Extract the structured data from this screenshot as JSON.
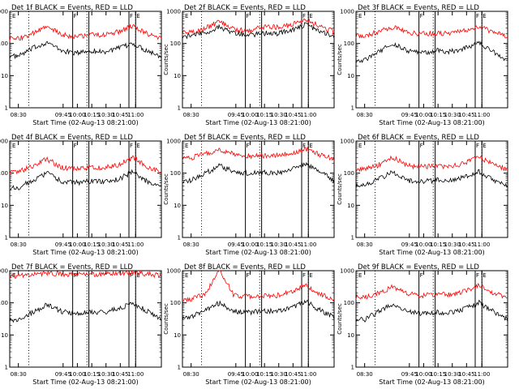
{
  "colors": {
    "events": "#000000",
    "lld": "#ff0000",
    "axes": "#000000",
    "background": "#ffffff"
  },
  "panels": [
    {
      "title": "Det 1f BLACK = Events, RED = LLD",
      "xlabel": "Start Time (02-Aug-13 08:21:00)",
      "ylabel": "Counts/sec",
      "xticks": [
        "08:30",
        "09:45",
        "10:00",
        "10:15",
        "10:30",
        "10:45",
        "11:00"
      ],
      "yticks": [
        "1",
        "10",
        "100",
        "1000"
      ]
    },
    {
      "title": "Det 2f BLACK = Events, RED = LLD",
      "xlabel": "Start Time (02-Aug-13 08:21:00)",
      "ylabel": "Counts/sec",
      "xticks": [
        "08:30",
        "09:45",
        "10:00",
        "10:15",
        "10:30",
        "10:45",
        "11:00"
      ],
      "yticks": [
        "1",
        "10",
        "100",
        "1000"
      ]
    },
    {
      "title": "Det 3f BLACK = Events, RED = LLD",
      "xlabel": "Start Time (02-Aug-13 08:21:00)",
      "ylabel": "Counts/sec",
      "xticks": [
        "08:30",
        "09:45",
        "10:00",
        "10:15",
        "10:30",
        "10:45",
        "11:00"
      ],
      "yticks": [
        "1",
        "10",
        "100",
        "1000"
      ]
    },
    {
      "title": "Det 4f BLACK = Events, RED = LLD",
      "xlabel": "Start Time (02-Aug-13 08:21:00)",
      "ylabel": "Counts/sec",
      "xticks": [
        "08:30",
        "09:45",
        "10:00",
        "10:15",
        "10:30",
        "10:45",
        "11:00"
      ],
      "yticks": [
        "1",
        "10",
        "100",
        "1000"
      ]
    },
    {
      "title": "Det 5f BLACK = Events, RED = LLD",
      "xlabel": "Start Time (02-Aug-13 08:21:00)",
      "ylabel": "Counts/sec",
      "xticks": [
        "08:30",
        "09:45",
        "10:00",
        "10:15",
        "10:30",
        "10:45",
        "11:00"
      ],
      "yticks": [
        "1",
        "10",
        "100",
        "1000"
      ]
    },
    {
      "title": "Det 6f BLACK = Events, RED = LLD",
      "xlabel": "Start Time (02-Aug-13 08:21:00)",
      "ylabel": "Counts/sec",
      "xticks": [
        "08:30",
        "09:45",
        "10:00",
        "10:15",
        "10:30",
        "10:45",
        "11:00"
      ],
      "yticks": [
        "1",
        "10",
        "100",
        "1000"
      ]
    },
    {
      "title": "Det 7f BLACK = Events, RED = LLD",
      "xlabel": "Start Time (02-Aug-13 08:21:00)",
      "ylabel": "Counts/sec",
      "xticks": [
        "08:30",
        "09:45",
        "10:00",
        "10:15",
        "10:30",
        "10:45",
        "11:00"
      ],
      "yticks": [
        "1",
        "10",
        "100",
        "1000"
      ]
    },
    {
      "title": "Det 8f BLACK = Events, RED = LLD",
      "xlabel": "Start Time (02-Aug-13 08:21:00)",
      "ylabel": "Counts/sec",
      "xticks": [
        "08:30",
        "09:45",
        "10:00",
        "10:15",
        "10:30",
        "10:45",
        "11:00"
      ],
      "yticks": [
        "1",
        "10",
        "100",
        "1000"
      ]
    },
    {
      "title": "Det 9f BLACK = Events, RED = LLD",
      "xlabel": "Start Time (02-Aug-13 08:21:00)",
      "ylabel": "Counts/sec",
      "xticks": [
        "08:30",
        "09:45",
        "10:00",
        "10:15",
        "10:30",
        "10:45",
        "11:00"
      ],
      "yticks": [
        "1",
        "10",
        "100",
        "1000"
      ]
    }
  ],
  "chart_data": [
    {
      "type": "line",
      "title": "Det 1f BLACK = Events, RED = LLD",
      "xlabel": "Start Time (02-Aug-13 08:21:00)",
      "ylabel": "Counts/sec",
      "log_y": true,
      "ylim": [
        1,
        1000
      ],
      "xlim": [
        "08:21",
        "11:00"
      ],
      "x": [
        "08:30",
        "08:45",
        "09:00",
        "09:15",
        "09:30",
        "09:45",
        "10:00",
        "10:15",
        "10:30",
        "10:45",
        "11:00"
      ],
      "series": [
        {
          "name": "Events",
          "color": "#000000",
          "values": [
            40,
            70,
            110,
            60,
            50,
            60,
            55,
            70,
            100,
            60,
            40
          ]
        },
        {
          "name": "LLD",
          "color": "#ff0000",
          "values": [
            140,
            200,
            330,
            190,
            160,
            190,
            180,
            230,
            350,
            200,
            140
          ]
        }
      ],
      "markers": {
        "dotted": [
          "08:41",
          "09:42",
          "10:33",
          "11:00"
        ],
        "solid": [
          "09:27",
          "09:44",
          "10:26",
          "10:33"
        ]
      },
      "annotations": [
        "E",
        "F",
        "F",
        "E"
      ]
    },
    {
      "type": "line",
      "title": "Det 2f BLACK = Events, RED = LLD",
      "xlabel": "Start Time (02-Aug-13 08:21:00)",
      "ylabel": "Counts/sec",
      "log_y": true,
      "ylim": [
        1,
        1000
      ],
      "xlim": [
        "08:21",
        "11:00"
      ],
      "x": [
        "08:30",
        "08:45",
        "09:00",
        "09:15",
        "09:30",
        "09:45",
        "10:00",
        "10:15",
        "10:30",
        "10:45",
        "11:00"
      ],
      "series": [
        {
          "name": "Events",
          "color": "#000000",
          "values": [
            170,
            220,
            330,
            210,
            180,
            210,
            200,
            260,
            380,
            250,
            170
          ]
        },
        {
          "name": "LLD",
          "color": "#ff0000",
          "values": [
            220,
            300,
            480,
            280,
            250,
            330,
            320,
            380,
            560,
            350,
            230
          ]
        }
      ],
      "markers": {
        "dotted": [
          "08:41",
          "09:42",
          "10:33",
          "11:00"
        ],
        "solid": [
          "09:27",
          "09:44",
          "10:26",
          "10:33"
        ]
      },
      "annotations": [
        "E",
        "F",
        "F",
        "E"
      ]
    },
    {
      "type": "line",
      "title": "Det 3f BLACK = Events, RED = LLD",
      "xlabel": "Start Time (02-Aug-13 08:21:00)",
      "ylabel": "Counts/sec",
      "log_y": true,
      "ylim": [
        1,
        1000
      ],
      "xlim": [
        "08:21",
        "11:00"
      ],
      "x": [
        "08:30",
        "08:45",
        "09:00",
        "09:15",
        "09:30",
        "09:45",
        "10:00",
        "10:15",
        "10:30",
        "10:45",
        "11:00"
      ],
      "series": [
        {
          "name": "Events",
          "color": "#000000",
          "values": [
            30,
            55,
            100,
            60,
            50,
            60,
            55,
            70,
            110,
            55,
            30
          ]
        },
        {
          "name": "LLD",
          "color": "#ff0000",
          "values": [
            180,
            230,
            330,
            210,
            200,
            210,
            200,
            250,
            350,
            220,
            170
          ]
        }
      ],
      "markers": {
        "dotted": [
          "08:41",
          "09:42",
          "10:33",
          "11:00"
        ],
        "solid": [
          "09:27",
          "09:44",
          "10:26",
          "10:33"
        ]
      },
      "annotations": [
        "E",
        "F",
        "F",
        "E"
      ]
    },
    {
      "type": "line",
      "title": "Det 4f BLACK = Events, RED = LLD",
      "xlabel": "Start Time (02-Aug-13 08:21:00)",
      "ylabel": "Counts/sec",
      "log_y": true,
      "ylim": [
        1,
        1000
      ],
      "xlim": [
        "08:21",
        "11:00"
      ],
      "x": [
        "08:30",
        "08:45",
        "09:00",
        "09:15",
        "09:30",
        "09:45",
        "10:00",
        "10:15",
        "10:30",
        "10:45",
        "11:00"
      ],
      "series": [
        {
          "name": "Events",
          "color": "#000000",
          "values": [
            35,
            60,
            100,
            55,
            50,
            55,
            55,
            65,
            110,
            55,
            35
          ]
        },
        {
          "name": "LLD",
          "color": "#ff0000",
          "values": [
            110,
            160,
            280,
            150,
            140,
            150,
            150,
            180,
            310,
            160,
            110
          ]
        }
      ],
      "markers": {
        "dotted": [
          "08:41",
          "09:42",
          "10:33",
          "11:00"
        ],
        "solid": [
          "09:27",
          "09:44",
          "10:26",
          "10:33"
        ]
      },
      "annotations": [
        "E",
        "F",
        "F",
        "E"
      ]
    },
    {
      "type": "line",
      "title": "Det 5f BLACK = Events, RED = LLD",
      "xlabel": "Start Time (02-Aug-13 08:21:00)",
      "ylabel": "Counts/sec",
      "log_y": true,
      "ylim": [
        1,
        1000
      ],
      "xlim": [
        "08:21",
        "11:00"
      ],
      "x": [
        "08:30",
        "08:45",
        "09:00",
        "09:15",
        "09:30",
        "09:45",
        "10:00",
        "10:15",
        "10:30",
        "10:45",
        "11:00"
      ],
      "series": [
        {
          "name": "Events",
          "color": "#000000",
          "values": [
            60,
            100,
            170,
            110,
            100,
            105,
            100,
            130,
            200,
            110,
            60
          ]
        },
        {
          "name": "LLD",
          "color": "#ff0000",
          "values": [
            300,
            400,
            550,
            380,
            340,
            350,
            350,
            420,
            580,
            380,
            280
          ]
        }
      ],
      "markers": {
        "dotted": [
          "08:41",
          "09:42",
          "10:33",
          "11:00"
        ],
        "solid": [
          "09:27",
          "09:44",
          "10:26",
          "10:33"
        ]
      },
      "annotations": [
        "E",
        "F",
        "F",
        "E"
      ]
    },
    {
      "type": "line",
      "title": "Det 6f BLACK = Events, RED = LLD",
      "xlabel": "Start Time (02-Aug-13 08:21:00)",
      "ylabel": "Counts/sec",
      "log_y": true,
      "ylim": [
        1,
        1000
      ],
      "xlim": [
        "08:21",
        "11:00"
      ],
      "x": [
        "08:30",
        "08:45",
        "09:00",
        "09:15",
        "09:30",
        "09:45",
        "10:00",
        "10:15",
        "10:30",
        "10:45",
        "11:00"
      ],
      "series": [
        {
          "name": "Events",
          "color": "#000000",
          "values": [
            40,
            65,
            110,
            60,
            55,
            60,
            60,
            75,
            115,
            60,
            40
          ]
        },
        {
          "name": "LLD",
          "color": "#ff0000",
          "values": [
            130,
            180,
            310,
            170,
            160,
            160,
            160,
            200,
            330,
            180,
            130
          ]
        }
      ],
      "markers": {
        "dotted": [
          "08:41",
          "09:42",
          "10:33",
          "11:00"
        ],
        "solid": [
          "09:27",
          "09:44",
          "10:26",
          "10:33"
        ]
      },
      "annotations": [
        "E",
        "F",
        "F",
        "E"
      ]
    },
    {
      "type": "line",
      "title": "Det 7f BLACK = Events, RED = LLD",
      "xlabel": "Start Time (02-Aug-13 08:21:00)",
      "ylabel": "Counts/sec",
      "log_y": true,
      "ylim": [
        1,
        1000
      ],
      "xlim": [
        "08:21",
        "11:00"
      ],
      "x": [
        "08:30",
        "08:45",
        "09:00",
        "09:15",
        "09:30",
        "09:45",
        "10:00",
        "10:15",
        "10:30",
        "10:45",
        "11:00"
      ],
      "series": [
        {
          "name": "Events",
          "color": "#000000",
          "values": [
            30,
            50,
            90,
            55,
            45,
            50,
            50,
            65,
            100,
            55,
            30
          ]
        },
        {
          "name": "LLD",
          "color": "#ff0000",
          "values": [
            700,
            750,
            850,
            780,
            750,
            770,
            760,
            820,
            900,
            780,
            700
          ]
        }
      ],
      "markers": {
        "dotted": [
          "08:41",
          "09:42",
          "10:33",
          "11:00"
        ],
        "solid": [
          "09:27",
          "09:44",
          "10:26",
          "10:33"
        ]
      },
      "annotations": [
        "E",
        "F",
        "F",
        "E"
      ]
    },
    {
      "type": "line",
      "title": "Det 8f BLACK = Events, RED = LLD",
      "xlabel": "Start Time (02-Aug-13 08:21:00)",
      "ylabel": "Counts/sec",
      "log_y": true,
      "ylim": [
        1,
        1000
      ],
      "xlim": [
        "08:21",
        "11:00"
      ],
      "x": [
        "08:30",
        "08:45",
        "09:00",
        "09:15",
        "09:30",
        "09:45",
        "10:00",
        "10:15",
        "10:30",
        "10:45",
        "11:00"
      ],
      "series": [
        {
          "name": "Events",
          "color": "#000000",
          "values": [
            35,
            60,
            100,
            55,
            50,
            55,
            55,
            70,
            110,
            60,
            35
          ]
        },
        {
          "name": "LLD",
          "color": "#ff0000",
          "values": [
            130,
            190,
            1000,
            170,
            160,
            170,
            170,
            220,
            350,
            190,
            130
          ]
        }
      ],
      "markers": {
        "dotted": [
          "08:41",
          "09:42",
          "10:33",
          "11:00"
        ],
        "solid": [
          "09:27",
          "09:44",
          "10:26",
          "10:33"
        ]
      },
      "annotations": [
        "E",
        "F",
        "F",
        "E"
      ]
    },
    {
      "type": "line",
      "title": "Det 9f BLACK = Events, RED = LLD",
      "xlabel": "Start Time (02-Aug-13 08:21:00)",
      "ylabel": "Counts/sec",
      "log_y": true,
      "ylim": [
        1,
        1000
      ],
      "xlim": [
        "08:21",
        "11:00"
      ],
      "x": [
        "08:30",
        "08:45",
        "09:00",
        "09:15",
        "09:30",
        "09:45",
        "10:00",
        "10:15",
        "10:30",
        "10:45",
        "11:00"
      ],
      "series": [
        {
          "name": "Events",
          "color": "#000000",
          "values": [
            30,
            55,
            90,
            55,
            45,
            50,
            50,
            65,
            100,
            55,
            30
          ]
        },
        {
          "name": "LLD",
          "color": "#ff0000",
          "values": [
            150,
            200,
            330,
            190,
            170,
            180,
            180,
            230,
            360,
            200,
            150
          ]
        }
      ],
      "markers": {
        "dotted": [
          "08:41",
          "09:42",
          "10:33",
          "11:00"
        ],
        "solid": [
          "09:27",
          "09:44",
          "10:26",
          "10:33"
        ]
      },
      "annotations": [
        "E",
        "F",
        "F",
        "E"
      ]
    }
  ]
}
